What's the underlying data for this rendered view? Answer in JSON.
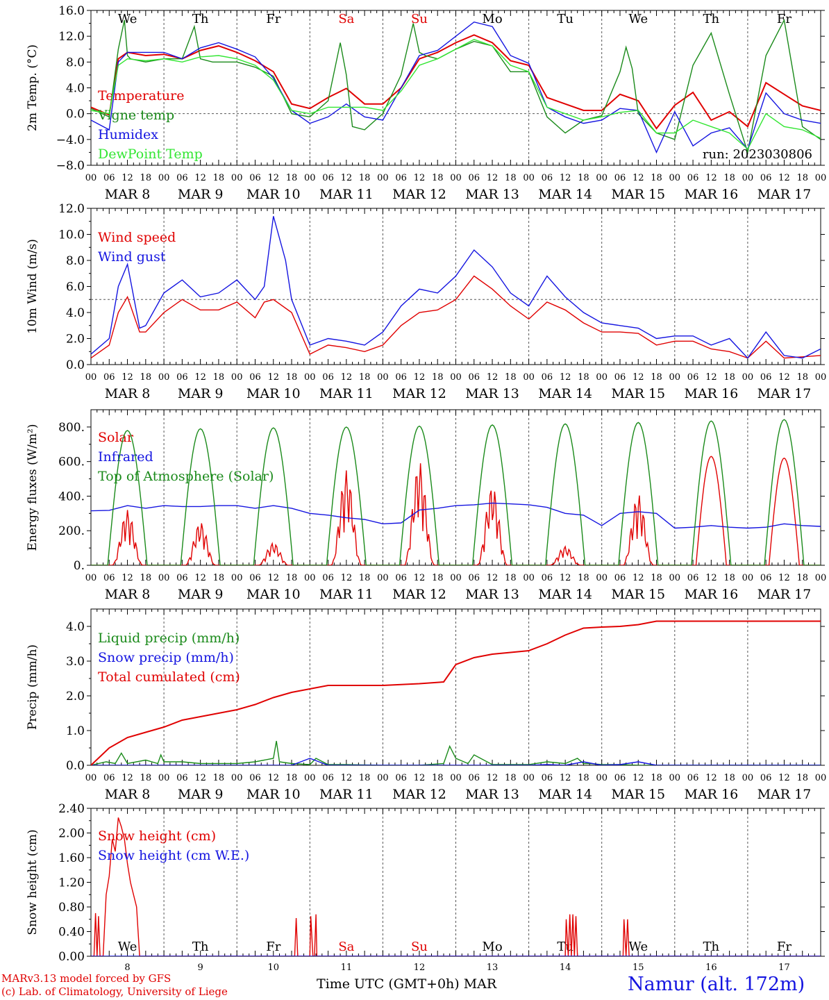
{
  "footer": {
    "credit_line1": "MARv3.13 model forced by GFS",
    "credit_line2": "(c) Lab. of Climatology, University of Liege",
    "xlabel": "Time UTC (GMT+0h) MAR",
    "station": "Namur (alt. 172m)"
  },
  "colors": {
    "red": "#e00000",
    "green": "#1a8a1a",
    "blue": "#1414e0",
    "lightgreen": "#32e632",
    "purple": "#8a2be2"
  },
  "chart_data": [
    {
      "type": "line",
      "ylabel": "2m Temp. (°C)",
      "ylim": [
        -8,
        16
      ],
      "yticks": [
        "16.0",
        "12.0",
        "8.0",
        "4.0",
        "0.0",
        "−4.0",
        "−8.0"
      ],
      "day_labels": [
        "We",
        "Th",
        "Fr",
        "Sa",
        "Su",
        "Mo",
        "Tu",
        "We",
        "Th",
        "Fr"
      ],
      "run_label": "run: 2023030806",
      "x_unit": "hours since MAR 8 00 UTC",
      "series": [
        {
          "name": "Temperature",
          "color": "red",
          "x": [
            0,
            6,
            9,
            12,
            18,
            24,
            30,
            36,
            42,
            48,
            54,
            60,
            66,
            72,
            78,
            84,
            90,
            96,
            102,
            108,
            114,
            120,
            126,
            132,
            138,
            144,
            150,
            156,
            162,
            168,
            174,
            180,
            186,
            192,
            198,
            204,
            210,
            216,
            222,
            228,
            234,
            240
          ],
          "y": [
            1,
            -0.2,
            8.5,
            9.5,
            9,
            9.2,
            8.5,
            9.8,
            10.5,
            9.5,
            8.2,
            6.5,
            1.5,
            0.8,
            2.5,
            3.9,
            1.5,
            1.5,
            4,
            8.5,
            9.5,
            11,
            12.2,
            11,
            8.2,
            7.5,
            2.5,
            1.5,
            0.5,
            0.5,
            3,
            2,
            -2.3,
            1.3,
            3.3,
            -1,
            0.3,
            -2,
            4.8,
            3,
            1.2,
            0.5
          ]
        },
        {
          "name": "Vigne temp",
          "color": "green",
          "x": [
            0,
            6,
            9,
            11,
            12,
            13,
            18,
            24,
            30,
            34,
            36,
            40,
            48,
            54,
            60,
            66,
            72,
            78,
            82,
            84,
            86,
            90,
            96,
            102,
            106,
            108,
            110,
            114,
            120,
            126,
            132,
            138,
            144,
            150,
            156,
            162,
            168,
            174,
            176,
            178,
            180,
            186,
            192,
            198,
            204,
            210,
            216,
            222,
            228,
            234,
            240
          ],
          "y": [
            0.8,
            -0.5,
            10,
            14.5,
            9,
            8.5,
            8,
            8.5,
            8.5,
            13.5,
            8.5,
            8,
            8,
            7.2,
            5.8,
            0,
            -0.5,
            2,
            11,
            6,
            -2,
            -2.5,
            0,
            6,
            14,
            9.5,
            9,
            8.5,
            10,
            11.2,
            10.5,
            6.5,
            6.5,
            -0.5,
            -3,
            -1,
            -0.3,
            6.5,
            10.3,
            7,
            0,
            -3,
            -4,
            7.5,
            12.5,
            3,
            -6,
            9,
            14.5,
            -2,
            -4
          ]
        },
        {
          "name": "Humidex",
          "color": "blue",
          "x": [
            0,
            6,
            9,
            12,
            18,
            24,
            30,
            36,
            42,
            48,
            54,
            60,
            66,
            72,
            78,
            84,
            90,
            96,
            102,
            108,
            114,
            120,
            126,
            132,
            138,
            144,
            150,
            156,
            162,
            168,
            174,
            180,
            186,
            192,
            198,
            204,
            210,
            216,
            222,
            228,
            234,
            240
          ],
          "y": [
            -1,
            -2.5,
            8,
            9.5,
            9.5,
            9.5,
            8.5,
            10.2,
            11,
            10,
            8.8,
            5.5,
            0.5,
            -1.5,
            -0.5,
            1.5,
            -0.5,
            -1,
            4,
            9,
            9.8,
            12,
            14.2,
            13.5,
            9,
            7.8,
            1,
            -0.5,
            -1.5,
            -1,
            0.8,
            0.5,
            -6,
            0.3,
            -5,
            -3,
            -2.2,
            -5.5,
            3.2,
            0,
            -1,
            -1.5
          ]
        },
        {
          "name": "DewPoint Temp",
          "color": "lightgreen",
          "x": [
            0,
            6,
            9,
            12,
            18,
            24,
            30,
            36,
            42,
            48,
            54,
            60,
            66,
            72,
            78,
            84,
            90,
            96,
            102,
            108,
            114,
            120,
            126,
            132,
            138,
            144,
            150,
            156,
            162,
            168,
            174,
            180,
            186,
            192,
            198,
            204,
            210,
            216,
            222,
            228,
            234,
            240
          ],
          "y": [
            0.5,
            0,
            7.5,
            8.5,
            8.2,
            8.5,
            8,
            8.8,
            9,
            8.5,
            7.5,
            5.2,
            0.5,
            0,
            1,
            1,
            1,
            0.5,
            3.5,
            7.5,
            8.5,
            10,
            11.5,
            10.5,
            7.5,
            6.5,
            1,
            0,
            -1,
            -0.5,
            0.2,
            0.5,
            -3,
            -3,
            -1,
            -2,
            -3,
            -5.5,
            0,
            -2,
            -2.5,
            -3.8
          ]
        }
      ]
    },
    {
      "type": "line",
      "ylabel": "10m Wind (m/s)",
      "ylim": [
        0,
        12
      ],
      "yticks": [
        "12.0",
        "10.0",
        "8.0",
        "6.0",
        "4.0",
        "2.0",
        "0.0"
      ],
      "ref_line": 5,
      "series": [
        {
          "name": "Wind speed",
          "color": "red",
          "x": [
            0,
            6,
            9,
            12,
            16,
            18,
            24,
            30,
            36,
            42,
            48,
            54,
            57,
            60,
            66,
            72,
            78,
            84,
            90,
            96,
            102,
            108,
            114,
            120,
            126,
            132,
            138,
            144,
            150,
            156,
            162,
            168,
            174,
            180,
            186,
            192,
            198,
            204,
            210,
            216,
            222,
            228,
            234,
            240
          ],
          "y": [
            0.5,
            1.5,
            4,
            5.2,
            2.5,
            2.5,
            4,
            5,
            4.2,
            4.2,
            4.8,
            3.6,
            4.8,
            5,
            4,
            0.8,
            1.5,
            1.3,
            1,
            1.5,
            3,
            4,
            4.2,
            5,
            6.8,
            5.8,
            4.5,
            3.5,
            4.8,
            4.2,
            3.2,
            2.5,
            2.5,
            2.4,
            1.5,
            1.8,
            1.8,
            1.2,
            1,
            0.5,
            1.8,
            0.5,
            0.6,
            0.7
          ]
        },
        {
          "name": "Wind gust",
          "color": "blue",
          "x": [
            0,
            6,
            9,
            12,
            16,
            18,
            24,
            30,
            36,
            42,
            48,
            54,
            57,
            60,
            64,
            66,
            72,
            78,
            84,
            90,
            96,
            102,
            108,
            114,
            120,
            126,
            132,
            138,
            144,
            150,
            156,
            162,
            168,
            174,
            180,
            186,
            192,
            198,
            204,
            210,
            216,
            222,
            228,
            234,
            240
          ],
          "y": [
            0.8,
            2,
            6,
            7.7,
            2.8,
            3,
            5.5,
            6.5,
            5.2,
            5.5,
            6.5,
            5,
            6,
            11.4,
            8,
            5,
            1.5,
            2,
            1.8,
            1.5,
            2.5,
            4.5,
            5.8,
            5.5,
            6.8,
            8.8,
            7.5,
            5.5,
            4.5,
            6.8,
            5.2,
            4,
            3.2,
            3,
            2.8,
            2,
            2.2,
            2.2,
            1.5,
            2,
            0.5,
            2.5,
            0.7,
            0.5,
            1.2
          ]
        }
      ]
    },
    {
      "type": "line",
      "ylabel": "Energy fluxes (W/m²)",
      "ylim": [
        0,
        900
      ],
      "yticks": [
        "800.",
        "600.",
        "400.",
        "200.",
        "0."
      ],
      "series": [
        {
          "name": "Solar",
          "color": "red",
          "x_unit": "hour",
          "daily_peaks": [
            320,
            250,
            130,
            550,
            600,
            460,
            110,
            410,
            630,
            620
          ]
        },
        {
          "name": "Infrared",
          "color": "blue",
          "x": [
            0,
            6,
            12,
            18,
            24,
            30,
            36,
            42,
            48,
            54,
            60,
            66,
            72,
            78,
            84,
            90,
            96,
            102,
            108,
            114,
            120,
            126,
            132,
            138,
            144,
            150,
            156,
            162,
            168,
            174,
            180,
            186,
            192,
            198,
            204,
            210,
            216,
            222,
            228,
            234,
            240
          ],
          "y": [
            315,
            318,
            345,
            330,
            345,
            340,
            340,
            345,
            345,
            330,
            345,
            330,
            300,
            290,
            275,
            265,
            240,
            245,
            320,
            330,
            345,
            350,
            360,
            355,
            350,
            335,
            300,
            290,
            230,
            300,
            310,
            300,
            215,
            220,
            230,
            220,
            215,
            220,
            240,
            230,
            225
          ]
        },
        {
          "name": "Top of Atmosphere (Solar)",
          "color": "green",
          "x_unit": "hour",
          "daily_peaks": [
            780,
            790,
            795,
            800,
            805,
            812,
            818,
            826,
            835,
            843
          ]
        }
      ]
    },
    {
      "type": "line",
      "ylabel": "Precip (mm/h)",
      "ylim": [
        0,
        4.5
      ],
      "yticks": [
        "4.0",
        "3.0",
        "2.0",
        "1.0",
        "0.0"
      ],
      "series": [
        {
          "name": "Liquid precip (mm/h)",
          "color": "green",
          "x": [
            0,
            5,
            8,
            10,
            12,
            18,
            22,
            23,
            24,
            30,
            36,
            48,
            54,
            60,
            61,
            62,
            66,
            72,
            74,
            78,
            84,
            96,
            108,
            116,
            118,
            120,
            124,
            126,
            132,
            144,
            150,
            156,
            160,
            162,
            164,
            168,
            174,
            180,
            186,
            240
          ],
          "y": [
            0,
            0.1,
            0.05,
            0.35,
            0.05,
            0.15,
            0.05,
            0.3,
            0.1,
            0.1,
            0.05,
            0.05,
            0.1,
            0.2,
            0.7,
            0.1,
            0.05,
            0.02,
            0.2,
            0.02,
            0.02,
            0,
            0,
            0.05,
            0.55,
            0.2,
            0.05,
            0.3,
            0.02,
            0.02,
            0.1,
            0.05,
            0.2,
            0.05,
            0.05,
            0.02,
            0.02,
            0,
            0,
            0
          ]
        },
        {
          "name": "Snow precip (mm/h)",
          "color": "blue",
          "x": [
            0,
            12,
            18,
            24,
            30,
            36,
            48,
            54,
            60,
            66,
            72,
            78,
            84,
            96,
            108,
            120,
            132,
            144,
            150,
            156,
            162,
            168,
            174,
            180,
            186,
            240
          ],
          "y": [
            0,
            0,
            0,
            0,
            0,
            0,
            0,
            0,
            0,
            0,
            0.2,
            0,
            0,
            0,
            0,
            0,
            0,
            0,
            0.02,
            0,
            0.1,
            0,
            0.02,
            0.1,
            0,
            0
          ]
        },
        {
          "name": "Total cumulated (cm)",
          "color": "red",
          "x": [
            0,
            6,
            12,
            18,
            24,
            30,
            36,
            48,
            54,
            60,
            66,
            72,
            78,
            96,
            108,
            116,
            120,
            126,
            132,
            144,
            150,
            156,
            162,
            168,
            174,
            180,
            186,
            192,
            240
          ],
          "y": [
            0,
            0.5,
            0.8,
            0.95,
            1.1,
            1.3,
            1.4,
            1.6,
            1.75,
            1.95,
            2.1,
            2.2,
            2.3,
            2.3,
            2.35,
            2.4,
            2.9,
            3.1,
            3.2,
            3.3,
            3.5,
            3.75,
            3.95,
            3.98,
            4,
            4.05,
            4.15,
            4.15,
            4.15
          ]
        }
      ]
    },
    {
      "type": "line",
      "ylabel": "Snow height (cm)",
      "ylim": [
        0,
        2.4
      ],
      "yticks": [
        "2.40",
        "2.00",
        "1.60",
        "1.20",
        "0.80",
        "0.40",
        "0.00"
      ],
      "day_labels": [
        "We",
        "Th",
        "Fr",
        "Sa",
        "Su",
        "Mo",
        "Tu",
        "We",
        "Th",
        "Fr"
      ],
      "bottom_dates": [
        "8",
        "9",
        "10",
        "11",
        "12",
        "13",
        "14",
        "15",
        "16",
        "17"
      ],
      "series": [
        {
          "name": "Snow height (cm)",
          "color": "red",
          "x": [
            0,
            1,
            1.5,
            2,
            2.5,
            3,
            4,
            5,
            6,
            7,
            8,
            9,
            10,
            11,
            12,
            13,
            14,
            15,
            16,
            16.5,
            17,
            67,
            67.5,
            68,
            72,
            72.3,
            73,
            73.5,
            74,
            74.3,
            75,
            156,
            156.3,
            157,
            157.5,
            158,
            158.5,
            159,
            159.5,
            160,
            175,
            175.3,
            176,
            176.5,
            177,
            177.5,
            178,
            240
          ],
          "y": [
            0,
            0,
            0.7,
            0,
            0.65,
            0,
            0,
            1,
            1.3,
            1.9,
            1.7,
            2.25,
            2.1,
            1.9,
            1.5,
            1.2,
            1,
            0.8,
            0,
            0,
            0,
            0,
            0.62,
            0,
            0,
            0.65,
            0,
            0,
            0.68,
            0,
            0,
            0,
            0.6,
            0,
            0.68,
            0,
            0.68,
            0,
            0.65,
            0,
            0,
            0.6,
            0,
            0.6,
            0,
            0,
            0,
            0
          ]
        },
        {
          "name": "Snow height (cm W.E.)",
          "color": "blue",
          "x": [
            0,
            240
          ],
          "y": [
            0,
            0
          ]
        }
      ]
    }
  ]
}
